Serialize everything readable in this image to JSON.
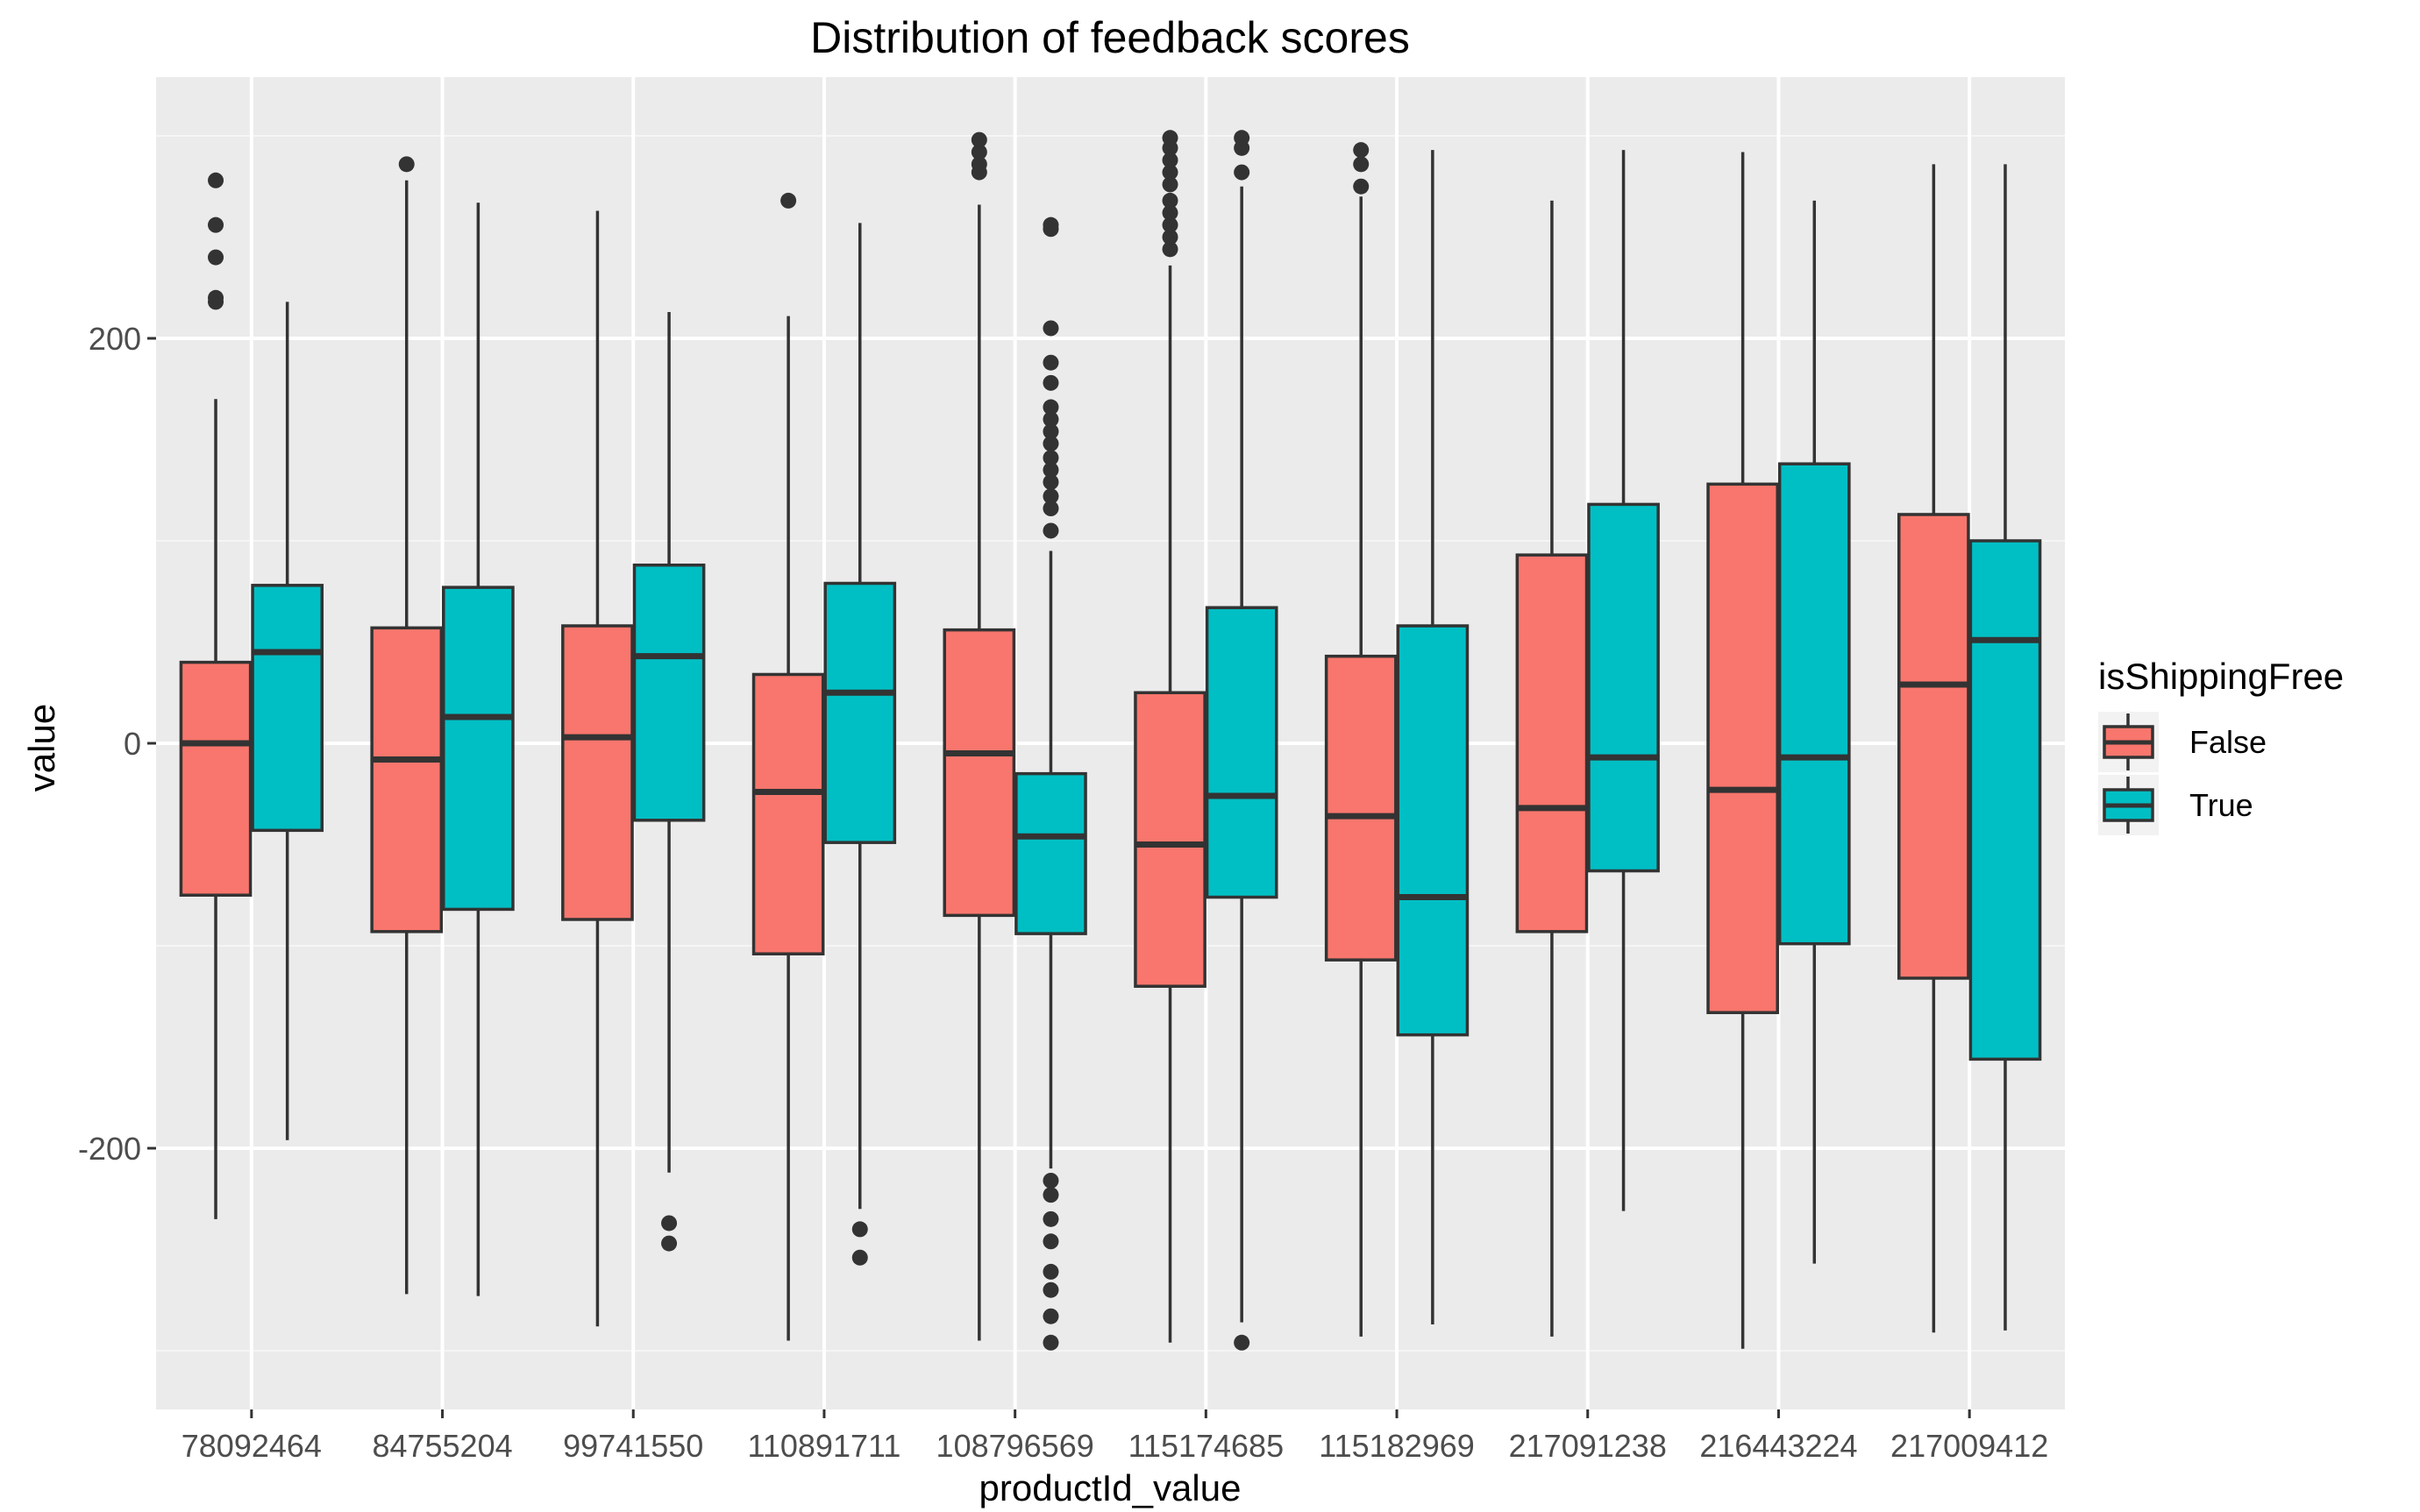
{
  "chart_data": {
    "type": "boxplot",
    "title": "Distribution of feedback scores",
    "xlabel": "productId_value",
    "ylabel": "value",
    "ylim": [
      -300,
      300
    ],
    "yticks": [
      -200,
      0,
      200
    ],
    "grid": true,
    "legend": {
      "title": "isShippingFree",
      "position": "right",
      "entries": [
        {
          "name": "False",
          "color": "#F8766D"
        },
        {
          "name": "True",
          "color": "#00BFC4"
        }
      ]
    },
    "categories": [
      "78092464",
      "84755204",
      "99741550",
      "110891711",
      "108796569",
      "115174685",
      "115182969",
      "217091238",
      "216443224",
      "217009412"
    ],
    "series": [
      {
        "name": "False",
        "color": "#F8766D",
        "boxes": [
          {
            "lower_whisker": -235,
            "q1": -75,
            "median": 0,
            "q3": 40,
            "upper_whisker": 170,
            "outliers": [
              218,
              220,
              240,
              256,
              278
            ]
          },
          {
            "lower_whisker": -272,
            "q1": -93,
            "median": -8,
            "q3": 57,
            "upper_whisker": 278,
            "outliers": [
              286
            ]
          },
          {
            "lower_whisker": -288,
            "q1": -87,
            "median": 3,
            "q3": 58,
            "upper_whisker": 263,
            "outliers": []
          },
          {
            "lower_whisker": -295,
            "q1": -104,
            "median": -24,
            "q3": 34,
            "upper_whisker": 211,
            "outliers": [
              268
            ]
          },
          {
            "lower_whisker": -295,
            "q1": -85,
            "median": -5,
            "q3": 56,
            "upper_whisker": 266,
            "outliers": [
              282,
              286,
              292,
              298
            ]
          },
          {
            "lower_whisker": -296,
            "q1": -120,
            "median": -50,
            "q3": 25,
            "upper_whisker": 236,
            "outliers": [
              244,
              250,
              256,
              262,
              268,
              276,
              282,
              288,
              294,
              299
            ]
          },
          {
            "lower_whisker": -293,
            "q1": -107,
            "median": -36,
            "q3": 43,
            "upper_whisker": 270,
            "outliers": [
              275,
              286,
              293
            ]
          },
          {
            "lower_whisker": -293,
            "q1": -93,
            "median": -32,
            "q3": 93,
            "upper_whisker": 268,
            "outliers": []
          },
          {
            "lower_whisker": -299,
            "q1": -133,
            "median": -23,
            "q3": 128,
            "upper_whisker": 292,
            "outliers": []
          },
          {
            "lower_whisker": -291,
            "q1": -116,
            "median": 29,
            "q3": 113,
            "upper_whisker": 286,
            "outliers": []
          }
        ]
      },
      {
        "name": "True",
        "color": "#00BFC4",
        "boxes": [
          {
            "lower_whisker": -196,
            "q1": -43,
            "median": 45,
            "q3": 78,
            "upper_whisker": 218,
            "outliers": []
          },
          {
            "lower_whisker": -273,
            "q1": -82,
            "median": 13,
            "q3": 77,
            "upper_whisker": 267,
            "outliers": []
          },
          {
            "lower_whisker": -212,
            "q1": -38,
            "median": 43,
            "q3": 88,
            "upper_whisker": 213,
            "outliers": [
              -237,
              -247
            ]
          },
          {
            "lower_whisker": -230,
            "q1": -49,
            "median": 25,
            "q3": 79,
            "upper_whisker": 257,
            "outliers": [
              -240,
              -254
            ]
          },
          {
            "lower_whisker": -210,
            "q1": -94,
            "median": -46,
            "q3": -15,
            "upper_whisker": 95,
            "outliers": [
              -216,
              -223,
              -235,
              -246,
              -261,
              -270,
              -283,
              -296,
              105,
              116,
              122,
              129,
              135,
              141,
              148,
              154,
              160,
              166,
              178,
              188,
              205,
              254,
              256
            ]
          },
          {
            "lower_whisker": -286,
            "q1": -76,
            "median": -26,
            "q3": 67,
            "upper_whisker": 275,
            "outliers": [
              -296,
              282,
              294,
              299
            ]
          },
          {
            "lower_whisker": -287,
            "q1": -144,
            "median": -76,
            "q3": 58,
            "upper_whisker": 293,
            "outliers": []
          },
          {
            "lower_whisker": -231,
            "q1": -63,
            "median": -7,
            "q3": 118,
            "upper_whisker": 293,
            "outliers": []
          },
          {
            "lower_whisker": -257,
            "q1": -99,
            "median": -7,
            "q3": 138,
            "upper_whisker": 268,
            "outliers": []
          },
          {
            "lower_whisker": -290,
            "q1": -156,
            "median": 51,
            "q3": 100,
            "upper_whisker": 286,
            "outliers": []
          }
        ]
      }
    ]
  }
}
